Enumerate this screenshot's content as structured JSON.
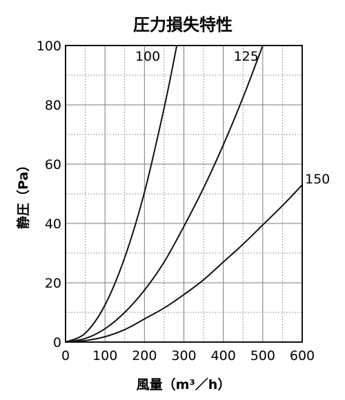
{
  "chart_data": {
    "type": "line",
    "title": "圧力損失特性",
    "xlabel": "風量（m³／h）",
    "ylabel": "静圧（Pa）",
    "xlim": [
      0,
      600
    ],
    "ylim": [
      0,
      100
    ],
    "x_ticks": [
      "0",
      "100",
      "200",
      "300",
      "400",
      "500",
      "600"
    ],
    "y_ticks": [
      "0",
      "20",
      "40",
      "60",
      "80",
      "100"
    ],
    "grid": true,
    "legend": "none",
    "series": [
      {
        "name": "100",
        "x": [
          0,
          50,
          100,
          150,
          200,
          250,
          282
        ],
        "y": [
          0,
          3.0,
          12.5,
          28.5,
          50.5,
          79.0,
          100
        ]
      },
      {
        "name": "125",
        "x": [
          0,
          50,
          100,
          150,
          200,
          250,
          300,
          350,
          400,
          450,
          500
        ],
        "y": [
          0,
          1.2,
          4.5,
          10.0,
          17.5,
          27.0,
          39.0,
          52.0,
          66.5,
          82.5,
          100
        ]
      },
      {
        "name": "150",
        "x": [
          0,
          50,
          100,
          150,
          200,
          250,
          300,
          350,
          400,
          450,
          500,
          550,
          600
        ],
        "y": [
          0,
          0.5,
          1.8,
          4.2,
          7.8,
          11.5,
          16.0,
          21.0,
          27.0,
          33.0,
          39.5,
          46.0,
          53.0
        ]
      }
    ]
  }
}
